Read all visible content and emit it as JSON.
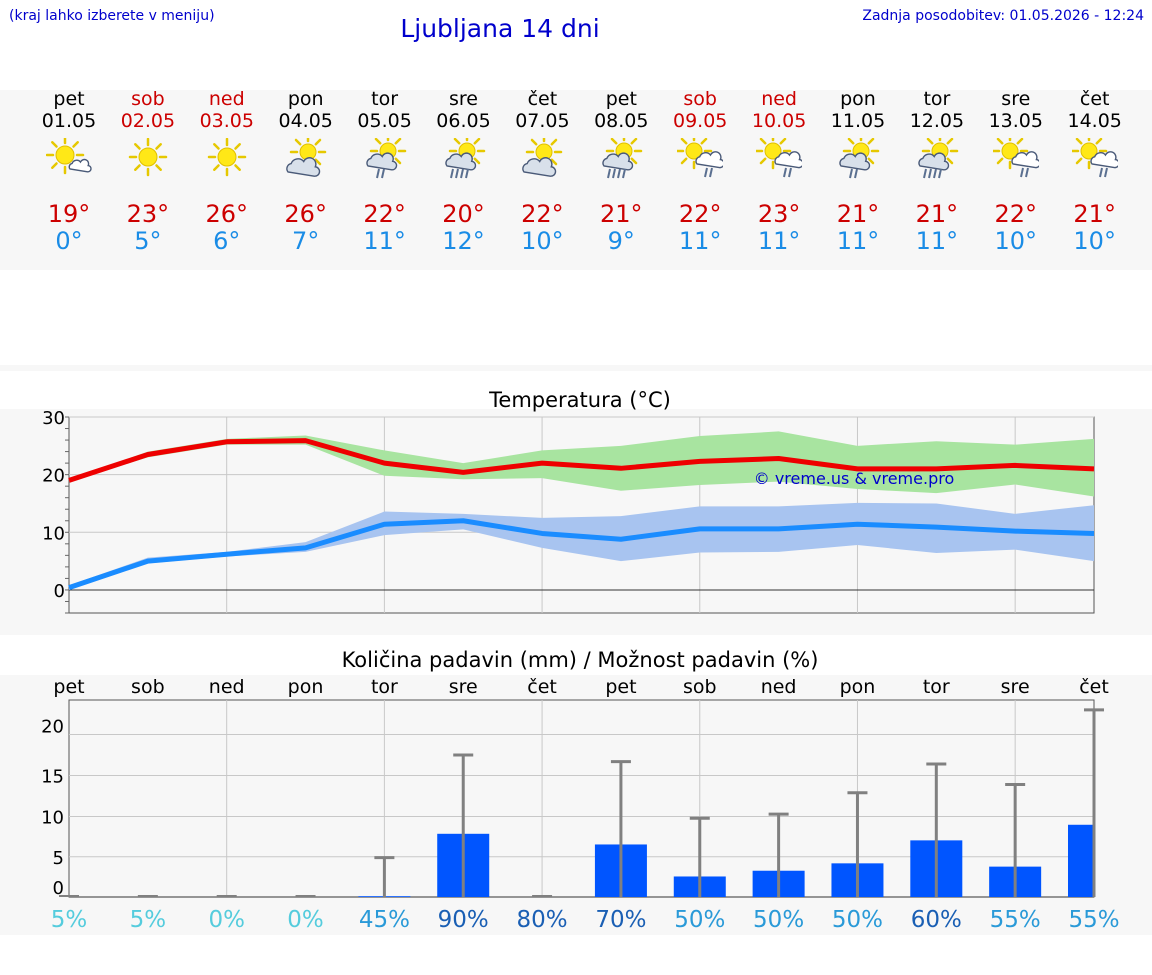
{
  "header": {
    "hint": "(kraj lahko izberete v meniju)",
    "title": "Ljubljana 14 dni",
    "updated": "Zadnja posodobitev: 01.05.2026 - 12:24"
  },
  "days": [
    {
      "name": "pet",
      "date": "01.05",
      "weekend": false,
      "icon": "sun-light-clouds-icon",
      "max": "19°",
      "min": "0°"
    },
    {
      "name": "sob",
      "date": "02.05",
      "weekend": true,
      "icon": "sun-icon",
      "max": "23°",
      "min": "5°"
    },
    {
      "name": "ned",
      "date": "03.05",
      "weekend": true,
      "icon": "sun-icon",
      "max": "26°",
      "min": "6°"
    },
    {
      "name": "pon",
      "date": "04.05",
      "weekend": false,
      "icon": "sun-cloudy-icon",
      "max": "26°",
      "min": "7°"
    },
    {
      "name": "tor",
      "date": "05.05",
      "weekend": false,
      "icon": "sun-cloud-rain-icon",
      "max": "22°",
      "min": "11°"
    },
    {
      "name": "sre",
      "date": "06.05",
      "weekend": false,
      "icon": "sun-cloud-heavy-rain-icon",
      "max": "20°",
      "min": "12°"
    },
    {
      "name": "čet",
      "date": "07.05",
      "weekend": false,
      "icon": "sun-cloudy-icon",
      "max": "22°",
      "min": "10°"
    },
    {
      "name": "pet",
      "date": "08.05",
      "weekend": false,
      "icon": "sun-cloud-heavy-rain-icon",
      "max": "21°",
      "min": "9°"
    },
    {
      "name": "sob",
      "date": "09.05",
      "weekend": true,
      "icon": "sun-cloud-showers-icon",
      "max": "22°",
      "min": "11°"
    },
    {
      "name": "ned",
      "date": "10.05",
      "weekend": true,
      "icon": "sun-cloud-showers-icon",
      "max": "23°",
      "min": "11°"
    },
    {
      "name": "pon",
      "date": "11.05",
      "weekend": false,
      "icon": "sun-cloud-rain-icon",
      "max": "21°",
      "min": "11°"
    },
    {
      "name": "tor",
      "date": "12.05",
      "weekend": false,
      "icon": "sun-cloud-heavy-rain-icon",
      "max": "21°",
      "min": "11°"
    },
    {
      "name": "sre",
      "date": "13.05",
      "weekend": false,
      "icon": "sun-cloud-showers-icon",
      "max": "22°",
      "min": "10°"
    },
    {
      "name": "čet",
      "date": "14.05",
      "weekend": false,
      "icon": "sun-cloud-showers-icon",
      "max": "21°",
      "min": "10°"
    }
  ],
  "colors": {
    "max_line": "#ee0000",
    "max_band": "#a8e4a0",
    "min_line": "#1a8cff",
    "min_band": "#a8c4f0",
    "bar": "#0055ff",
    "whisker": "#808080",
    "prob_low": "#55ccdd",
    "prob_mid": "#2a9ad8",
    "prob_high": "#1a5fb4"
  },
  "chart_data": [
    {
      "type": "line",
      "title": "Temperatura (°C)",
      "watermark": "© vreme.us & vreme.pro",
      "categories": [
        "01.05",
        "02.05",
        "03.05",
        "04.05",
        "05.05",
        "06.05",
        "07.05",
        "08.05",
        "09.05",
        "10.05",
        "11.05",
        "12.05",
        "13.05",
        "14.05"
      ],
      "ylim": [
        -4,
        30
      ],
      "yticks": [
        0,
        10,
        20,
        30
      ],
      "series": [
        {
          "role": "max",
          "values": [
            19,
            23.5,
            25.7,
            25.9,
            22,
            20.4,
            22,
            21.1,
            22.3,
            22.8,
            21,
            21,
            21.6,
            21
          ],
          "band_low": [
            18.8,
            23,
            25.2,
            25.2,
            19.8,
            19.2,
            19.4,
            17.2,
            18.2,
            18.8,
            17.5,
            16.8,
            18.3,
            16.2
          ],
          "band_high": [
            19.2,
            24,
            26.2,
            26.8,
            24.2,
            22,
            24.2,
            25,
            26.7,
            27.5,
            25,
            25.8,
            25.2,
            26.2
          ]
        },
        {
          "role": "min",
          "values": [
            0.4,
            5,
            6.2,
            7.3,
            11.4,
            12,
            9.8,
            8.8,
            10.6,
            10.6,
            11.4,
            10.9,
            10.2,
            9.8
          ],
          "band_low": [
            0,
            4.6,
            5.8,
            6.6,
            9.5,
            10.5,
            7.3,
            5,
            6.5,
            6.6,
            7.8,
            6.4,
            7,
            5
          ],
          "band_high": [
            0.8,
            5.6,
            6.6,
            8.3,
            13.6,
            13.2,
            12.5,
            12.8,
            14.5,
            14.5,
            15.1,
            15,
            13.2,
            14.7
          ]
        }
      ]
    },
    {
      "type": "bar",
      "title": "Količina padavin (mm) / Možnost padavin (%)",
      "categories": [
        "pet",
        "sob",
        "ned",
        "pon",
        "tor",
        "sre",
        "čet",
        "pet",
        "sob",
        "ned",
        "pon",
        "tor",
        "sre",
        "čet"
      ],
      "ylim": [
        0,
        24
      ],
      "ytick_labels": [
        "0",
        "5",
        "10",
        "15",
        "20"
      ],
      "values": [
        0,
        0,
        0,
        0,
        0.1,
        7.7,
        0,
        6.4,
        2.5,
        3.2,
        4.1,
        6.9,
        3.7,
        8.8
      ],
      "whisker_high": [
        0,
        0,
        0,
        0,
        4.8,
        17.3,
        0,
        16.5,
        9.6,
        10.1,
        12.7,
        16.2,
        13.7,
        22.8
      ],
      "probability": [
        "5%",
        "5%",
        "0%",
        "0%",
        "45%",
        "90%",
        "80%",
        "70%",
        "50%",
        "50%",
        "50%",
        "60%",
        "55%",
        "55%"
      ]
    }
  ]
}
